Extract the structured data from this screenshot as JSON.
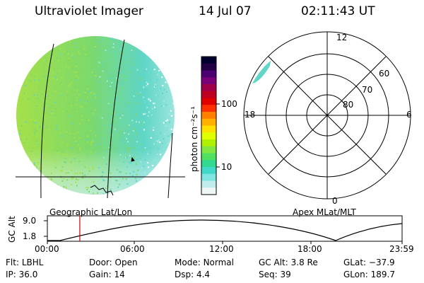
{
  "header": {
    "title": "Ultraviolet Imager",
    "date": "14 Jul 07",
    "time": "02:11:43 UT"
  },
  "colorbar": {
    "label": "photon cm⁻²s⁻¹",
    "ticks": [
      "100",
      "10"
    ],
    "colors": [
      "#000030",
      "#220044",
      "#4a0070",
      "#7a007a",
      "#a0004a",
      "#c00020",
      "#e00000",
      "#ff3000",
      "#ff8000",
      "#ffb000",
      "#ffe000",
      "#e0ff00",
      "#b0f000",
      "#80e840",
      "#50e060",
      "#30d890",
      "#40d8c8",
      "#80e4e0",
      "#c0ecec",
      "#f0f6f6"
    ]
  },
  "image_panel": {
    "label": "Geographic Lat/Lon",
    "colors": {
      "main": "#7dd96a",
      "edge": "#5fd6c8",
      "dim": "#a6e8e0",
      "bright": "#a6e04a"
    }
  },
  "polar_panel": {
    "label": "Apex MLat/MLT",
    "mlt_labels": [
      "12",
      "18",
      "6",
      "0"
    ],
    "lat_labels": [
      "60",
      "70",
      "80"
    ]
  },
  "altitude_plot": {
    "ylabel": "GC Alt",
    "yticks": [
      "9.0",
      "1.8"
    ],
    "xticks": [
      "00:00",
      "06:00",
      "12:00",
      "18:00",
      "23:59"
    ],
    "current_time_fraction": 0.0915,
    "marker_color": "#d00000"
  },
  "meta": [
    {
      "key": "Flt:",
      "value": "LBHL"
    },
    {
      "key": "Door:",
      "value": "Open"
    },
    {
      "key": "Mode:",
      "value": "Normal"
    },
    {
      "key": "GC Alt:",
      "value": "3.8 Re"
    },
    {
      "key": "GLat:",
      "value": "−37.9"
    },
    {
      "key": "IP:",
      "value": "36.0"
    },
    {
      "key": "Gain:",
      "value": "14"
    },
    {
      "key": "Dsp:",
      "value": "4.4"
    },
    {
      "key": "Seq:",
      "value": "39"
    },
    {
      "key": "GLon:",
      "value": "189.7"
    }
  ]
}
